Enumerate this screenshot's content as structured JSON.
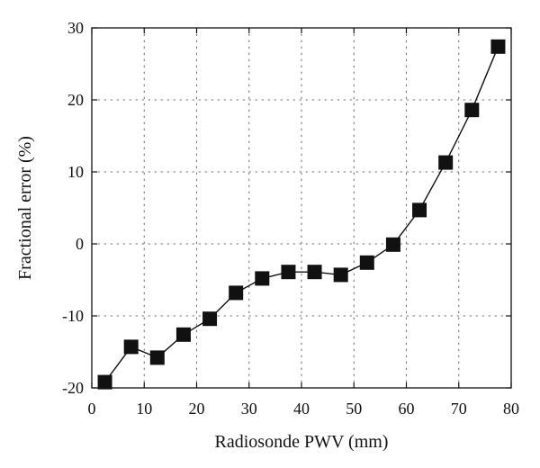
{
  "chart_data": {
    "type": "line",
    "title": "",
    "xlabel": "Radiosonde PWV (mm)",
    "ylabel": "Fractional error (%)",
    "xlim": [
      0,
      80
    ],
    "ylim": [
      -20,
      30
    ],
    "xticks": [
      0,
      10,
      20,
      30,
      40,
      50,
      60,
      70,
      80
    ],
    "yticks": [
      -20,
      -10,
      0,
      10,
      20,
      30
    ],
    "xtick_labels": [
      "0",
      "10",
      "20",
      "30",
      "40",
      "50",
      "60",
      "70",
      "80"
    ],
    "ytick_labels": [
      "-20",
      "-10",
      "0",
      "10",
      "20",
      "30"
    ],
    "grid": true,
    "grid_style": "dotted",
    "marker": "square",
    "series": [
      {
        "x": [
          2.5,
          7.5,
          12.5,
          17.5,
          22.5,
          27.5,
          32.5,
          37.5,
          42.5,
          47.5,
          52.5,
          57.5,
          62.5,
          67.5,
          72.5,
          77.5
        ],
        "y": [
          -19.2,
          -14.3,
          -15.8,
          -12.6,
          -10.4,
          -6.8,
          -4.8,
          -3.9,
          -3.9,
          -4.3,
          -2.6,
          -0.1,
          4.7,
          11.3,
          18.6,
          27.4
        ]
      }
    ],
    "colors": {
      "line": "#111111",
      "marker": "#111111",
      "grid": "#777777",
      "axis": "#111111"
    }
  }
}
